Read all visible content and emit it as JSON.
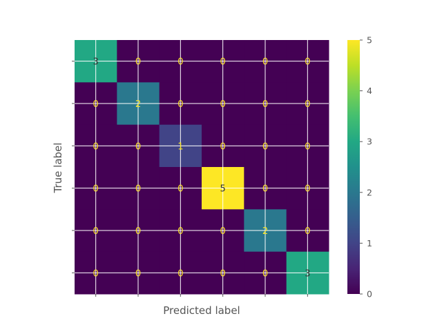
{
  "chart_data": {
    "type": "heatmap",
    "title": "",
    "xlabel": "Predicted label",
    "ylabel": "True label",
    "x_tick_labels": [
      "",
      "",
      "",
      "",
      "",
      ""
    ],
    "y_tick_labels": [
      "",
      "",
      "",
      "",
      "",
      ""
    ],
    "matrix": [
      [
        3,
        0,
        0,
        0,
        0,
        0
      ],
      [
        0,
        2,
        0,
        0,
        0,
        0
      ],
      [
        0,
        0,
        1,
        0,
        0,
        0
      ],
      [
        0,
        0,
        0,
        5,
        0,
        0
      ],
      [
        0,
        0,
        0,
        0,
        2,
        0
      ],
      [
        0,
        0,
        0,
        0,
        0,
        3
      ]
    ],
    "colormap": "viridis",
    "colorbar": {
      "vmin": 0,
      "vmax": 5,
      "ticks": [
        0,
        1,
        2,
        3,
        4,
        5
      ]
    },
    "grid": true,
    "annotation_colors": {
      "on_dark": "#fde725",
      "on_light": "#333333"
    }
  }
}
